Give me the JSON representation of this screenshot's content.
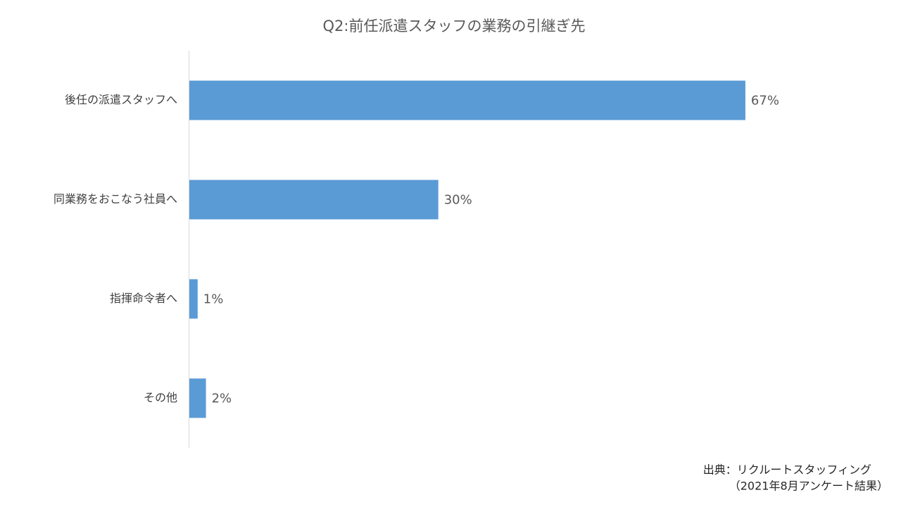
{
  "chart_data": {
    "type": "bar",
    "orientation": "horizontal",
    "title": "Q2:前任派遣スタッフの業務の引継ぎ先",
    "categories": [
      "後任の派遣スタッフへ",
      "同業務をおこなう社員へ",
      "指揮命令者へ",
      "その他"
    ],
    "values": [
      67,
      30,
      1,
      2
    ],
    "value_labels": [
      "67%",
      "30%",
      "1%",
      "2%"
    ],
    "color": "#5b9bd5",
    "source": [
      "出典：リクルートスタッフィング",
      "（2021年8月アンケート結果）"
    ]
  }
}
